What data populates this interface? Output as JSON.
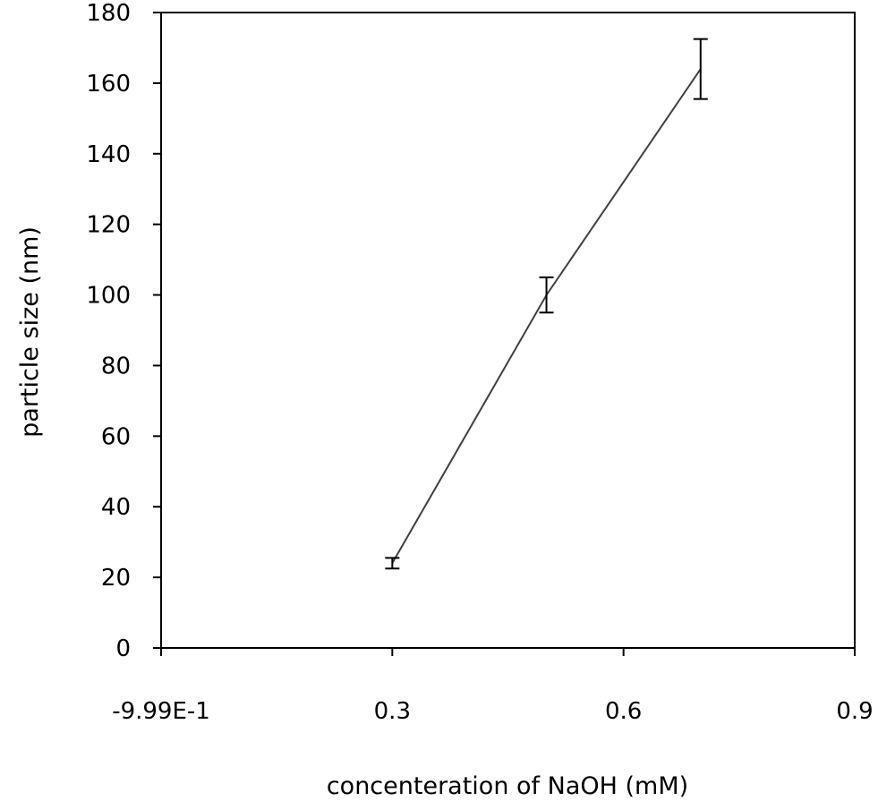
{
  "chart_data": {
    "type": "line",
    "title": "",
    "xlabel": "concenteration of NaOH (mM)",
    "ylabel": "particle size (nm)",
    "x_tick_labels": [
      "-9.99E-1",
      "0.3",
      "0.6",
      "0.9"
    ],
    "y_tick_labels": [
      "0",
      "20",
      "40",
      "60",
      "80",
      "100",
      "120",
      "140",
      "160",
      "180"
    ],
    "xlim": [
      0,
      0.9
    ],
    "ylim": [
      0,
      180
    ],
    "grid": false,
    "series": [
      {
        "x": [
          0.3,
          0.5,
          0.7
        ],
        "y": [
          24,
          100,
          164
        ],
        "error": [
          1.5,
          5,
          8.5
        ]
      }
    ],
    "colors": {
      "line": "#404040",
      "errorbar": "#000000",
      "axis": "#000000"
    }
  }
}
